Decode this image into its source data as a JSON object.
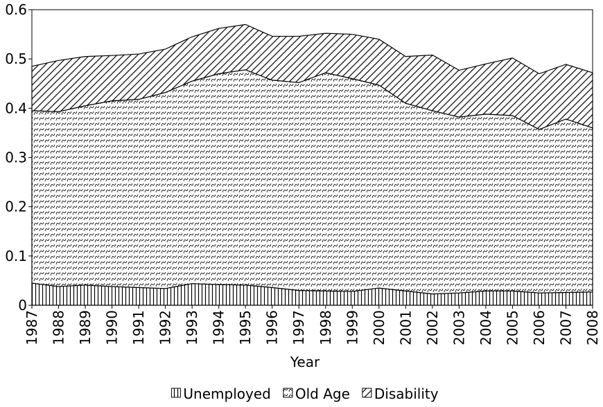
{
  "chart_data": {
    "type": "stacked-area",
    "x_label": "Year",
    "x": [
      1987,
      1988,
      1989,
      1990,
      1991,
      1992,
      1993,
      1994,
      1995,
      1996,
      1997,
      1998,
      1999,
      2000,
      2001,
      2002,
      2003,
      2004,
      2005,
      2006,
      2007,
      2008
    ],
    "xlim": [
      1987,
      2008
    ],
    "xticks": [
      1987,
      1988,
      1989,
      1990,
      1991,
      1992,
      1993,
      1994,
      1995,
      1996,
      1997,
      1998,
      1999,
      2000,
      2001,
      2002,
      2003,
      2004,
      2005,
      2006,
      2007,
      2008
    ],
    "ylim": [
      0,
      0.6
    ],
    "yticks": [
      0,
      0.1,
      0.2,
      0.3,
      0.4,
      0.5,
      0.6
    ],
    "legend": "bottom",
    "series": [
      {
        "name": "Unemployed",
        "color": "#000000",
        "pattern": "vertical",
        "values": [
          0.045,
          0.038,
          0.041,
          0.038,
          0.036,
          0.034,
          0.044,
          0.042,
          0.041,
          0.036,
          0.03,
          0.029,
          0.028,
          0.035,
          0.029,
          0.023,
          0.025,
          0.029,
          0.029,
          0.025,
          0.026,
          0.027
        ]
      },
      {
        "name": "Old Age",
        "color": "#000000",
        "pattern": "wave",
        "values": [
          0.35,
          0.355,
          0.364,
          0.377,
          0.382,
          0.398,
          0.411,
          0.428,
          0.437,
          0.421,
          0.422,
          0.443,
          0.432,
          0.412,
          0.381,
          0.372,
          0.357,
          0.359,
          0.356,
          0.332,
          0.352,
          0.333
        ]
      },
      {
        "name": "Disability",
        "color": "#000000",
        "pattern": "diagonal",
        "values": [
          0.09,
          0.104,
          0.1,
          0.092,
          0.092,
          0.088,
          0.09,
          0.092,
          0.092,
          0.089,
          0.094,
          0.08,
          0.09,
          0.093,
          0.095,
          0.113,
          0.095,
          0.102,
          0.117,
          0.113,
          0.111,
          0.112
        ]
      }
    ]
  }
}
